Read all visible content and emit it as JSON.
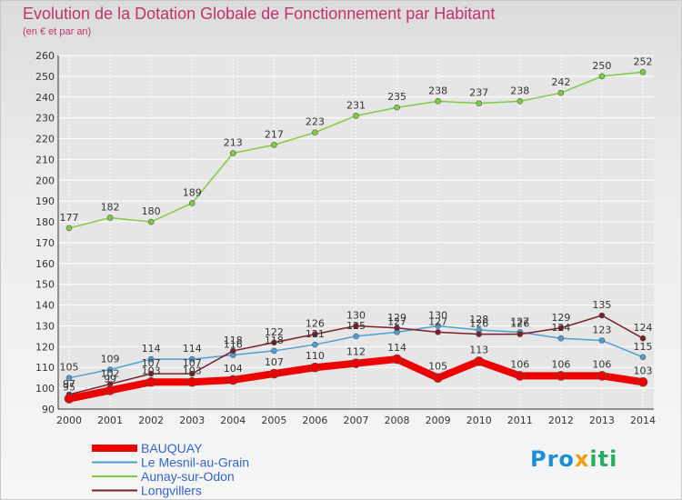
{
  "title": "Evolution de la Dotation Globale de Fonctionnement par Habitant",
  "subtitle": "(en € et par an)",
  "logo": {
    "part1": "Pro",
    "part2": "x",
    "part3": "iti",
    "text": "Proxiti"
  },
  "colors": {
    "title": "#c0336b",
    "axis": "#333333",
    "grid": "#ffffff",
    "legend_text": "#3366cc"
  },
  "chart_data": {
    "type": "line",
    "title": "Evolution de la Dotation Globale de Fonctionnement par Habitant",
    "subtitle": "(en € et par an)",
    "xlabel": "",
    "ylabel": "",
    "ylim": [
      90,
      260
    ],
    "yticks": [
      90,
      100,
      110,
      120,
      130,
      140,
      150,
      160,
      170,
      180,
      190,
      200,
      210,
      220,
      230,
      240,
      250,
      260
    ],
    "x": [
      "2000",
      "2001",
      "2002",
      "2003",
      "2004",
      "2005",
      "2006",
      "2007",
      "2008",
      "2009",
      "2010",
      "2011",
      "2012",
      "2013",
      "2014"
    ],
    "grid": "horizontal",
    "legend_position": "bottom-left",
    "series": [
      {
        "name": "BAUQUAY",
        "color": "#ee0000",
        "width": "thick",
        "values": [
          95,
          99,
          103,
          103,
          104,
          107,
          110,
          112,
          114,
          105,
          113,
          106,
          106,
          106,
          103
        ],
        "labels": [
          "95",
          "99",
          "103",
          "103",
          "104",
          "107",
          "110",
          "112",
          "114",
          "105",
          "113",
          "106",
          "106",
          "106",
          "103"
        ]
      },
      {
        "name": "Le Mesnil-au-Grain",
        "color": "#4f9fd6",
        "width": "thin",
        "values": [
          105,
          109,
          114,
          114,
          116,
          118,
          121,
          125,
          127,
          130,
          128,
          127,
          124,
          123,
          115
        ],
        "labels": [
          "105",
          "109",
          "114",
          "114",
          "116",
          "118",
          "121",
          "125",
          "127",
          "130",
          "128",
          "127",
          "124",
          "123",
          "115"
        ]
      },
      {
        "name": "Aunay-sur-Odon",
        "color": "#7fcc44",
        "width": "thin",
        "values": [
          177,
          182,
          180,
          189,
          213,
          217,
          223,
          231,
          235,
          238,
          237,
          238,
          242,
          250,
          252
        ],
        "labels": [
          "177",
          "182",
          "180",
          "189",
          "213",
          "217",
          "223",
          "231",
          "235",
          "238",
          "237",
          "238",
          "242",
          "250",
          "252"
        ]
      },
      {
        "name": "Longvillers",
        "color": "#7a1f2a",
        "width": "thin",
        "values": [
          97,
          102,
          107,
          107,
          118,
          122,
          126,
          130,
          129,
          127,
          126,
          126,
          129,
          135,
          124
        ],
        "labels": [
          "97",
          "102",
          "107",
          "107",
          "118",
          "122",
          "126",
          "130",
          "129",
          "127",
          "126",
          "126",
          "129",
          "135",
          "124"
        ]
      }
    ]
  }
}
